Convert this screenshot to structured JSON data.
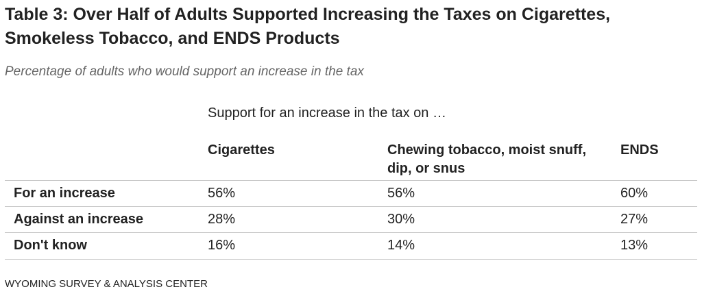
{
  "title": "Table 3: Over Half of Adults Supported Increasing the Taxes on Cigarettes, Smokeless Tobacco, and ENDS Products",
  "subtitle": "Percentage of adults who would support an increase in the tax",
  "table": {
    "spanner": "Support for an increase in the tax on …",
    "columns": [
      "Cigarettes",
      "Chewing tobacco, moist snuff, dip, or snus",
      "ENDS"
    ],
    "rows": [
      {
        "label": "For an increase",
        "values": [
          "56%",
          "56%",
          "60%"
        ]
      },
      {
        "label": "Against an increase",
        "values": [
          "28%",
          "30%",
          "27%"
        ]
      },
      {
        "label": "Don't know",
        "values": [
          "16%",
          "14%",
          "13%"
        ]
      }
    ]
  },
  "source": "WYOMING SURVEY & ANALYSIS CENTER",
  "colors": {
    "text": "#222222",
    "subtitle": "#666666",
    "rule": "#c8c8c8"
  }
}
